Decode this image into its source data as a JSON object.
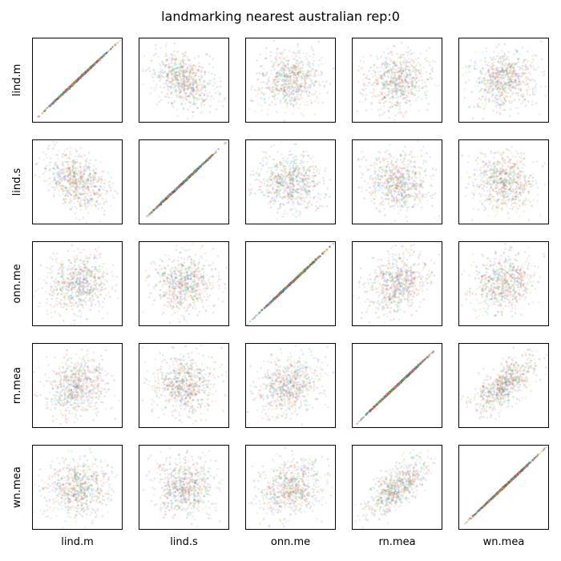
{
  "title": "landmarking nearest australian rep:0",
  "chart_data": {
    "type": "scatter",
    "title": "landmarking nearest australian rep:0",
    "variables": [
      "lind.m",
      "lind.s",
      "onn.me",
      "rn.mea",
      "wn.mea"
    ],
    "layout": "5x5 pair-plot matrix; rows and columns follow the variable order; diagonal panels plot each variable against itself",
    "axes": "no tick labels shown on any panel",
    "grid": false,
    "legend": "none",
    "points_per_panel": 700,
    "colors": [
      "#1f77b4",
      "#ff7f0e",
      "#2ca02c",
      "#d62728",
      "#9467bd",
      "#8c564b",
      "#17becf",
      "#bcbd22",
      "#e377c2"
    ],
    "correlations": [
      [
        1.0,
        -0.35,
        0.1,
        0.15,
        0.05
      ],
      [
        -0.35,
        1.0,
        0.0,
        0.0,
        -0.05
      ],
      [
        0.1,
        0.0,
        1.0,
        0.25,
        0.2
      ],
      [
        0.15,
        0.0,
        0.25,
        1.0,
        0.7
      ],
      [
        0.05,
        -0.05,
        0.2,
        0.7,
        1.0
      ]
    ]
  }
}
